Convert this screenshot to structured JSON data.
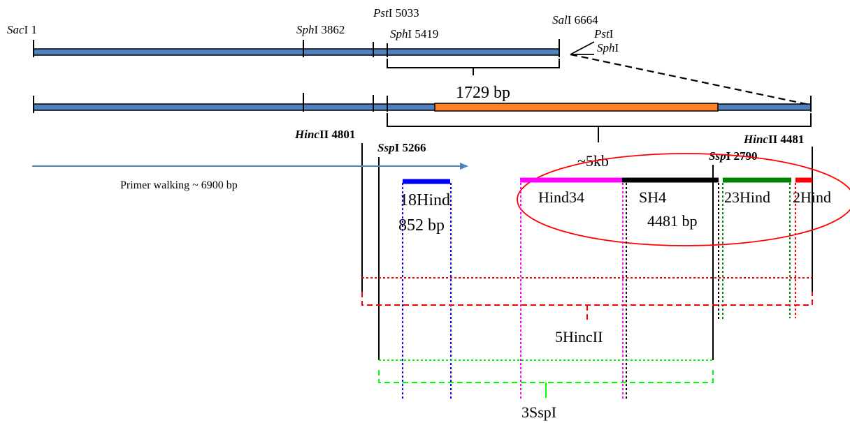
{
  "restriction_sites": {
    "saci": {
      "enzyme": "Sac",
      "suffix": "I 1"
    },
    "sphi_a": {
      "enzyme": "Sph",
      "suffix": "I 3862"
    },
    "psti_a": {
      "enzyme": "Pst",
      "suffix": "I 5033"
    },
    "sphi_b": {
      "enzyme": "Sph",
      "suffix": "I 5419"
    },
    "sali": {
      "enzyme": "Sal",
      "suffix": "I 6664"
    },
    "psti_b": {
      "enzyme": "Pst",
      "suffix": "I"
    },
    "sphi_c": {
      "enzyme": "Sph",
      "suffix": "I"
    },
    "hincii_a": {
      "enzyme": "Hinc",
      "suffix": "II 4801"
    },
    "sspi_a": {
      "enzyme": "Ssp",
      "suffix": "I 5266"
    },
    "hincii_b": {
      "enzyme": "Hinc",
      "suffix": "II 4481"
    },
    "sspi_b": {
      "enzyme": "Ssp",
      "suffix": "I 2790"
    }
  },
  "spans": {
    "fragment_1729": "1729 bp",
    "insert_5kb": "~5kb",
    "primer_walking": "Primer walking ~ 6900 bp"
  },
  "fragments": {
    "hind18": {
      "name": "18Hind",
      "size": "852 bp",
      "color": "#0000ff"
    },
    "hind34": {
      "name": "Hind34",
      "color": "#ff00ff"
    },
    "sh4": {
      "name": "SH4",
      "size": "4481 bp",
      "color": "#000000"
    },
    "hind23": {
      "name": "23Hind",
      "color": "#008000"
    },
    "hind2": {
      "name": "2Hind",
      "color": "#ff0000"
    },
    "hincii5": {
      "name": "5HincII",
      "color": "#ff0000"
    },
    "sspi3": {
      "name": "3SspI",
      "color": "#00ff00"
    }
  },
  "colors": {
    "plasmid_fill": "#4f81bd",
    "insert_fill": "#ff7f27",
    "arrow": "#4f81bd",
    "ellipse": "#ff0000"
  }
}
